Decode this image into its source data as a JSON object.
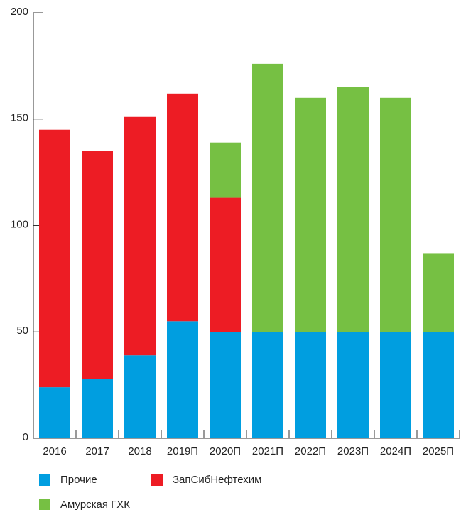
{
  "chart_data": {
    "type": "stacked-bar",
    "categories": [
      "2016",
      "2017",
      "2018",
      "2019П",
      "2020П",
      "2021П",
      "2022П",
      "2023П",
      "2024П",
      "2025П"
    ],
    "series": [
      {
        "name": "Прочие",
        "color": "#009ee0",
        "values": [
          24,
          28,
          39,
          55,
          50,
          50,
          50,
          50,
          50,
          50
        ]
      },
      {
        "name": "ЗапСибНефтехим",
        "color": "#ed1c24",
        "values": [
          121,
          107,
          112,
          107,
          63,
          0,
          0,
          0,
          0,
          0
        ]
      },
      {
        "name": "Амурская ГХК",
        "color": "#76c043",
        "values": [
          0,
          0,
          0,
          0,
          26,
          126,
          110,
          115,
          110,
          37
        ]
      }
    ],
    "ylim": [
      0,
      200
    ],
    "yticks": [
      0,
      50,
      100,
      150,
      200
    ]
  }
}
